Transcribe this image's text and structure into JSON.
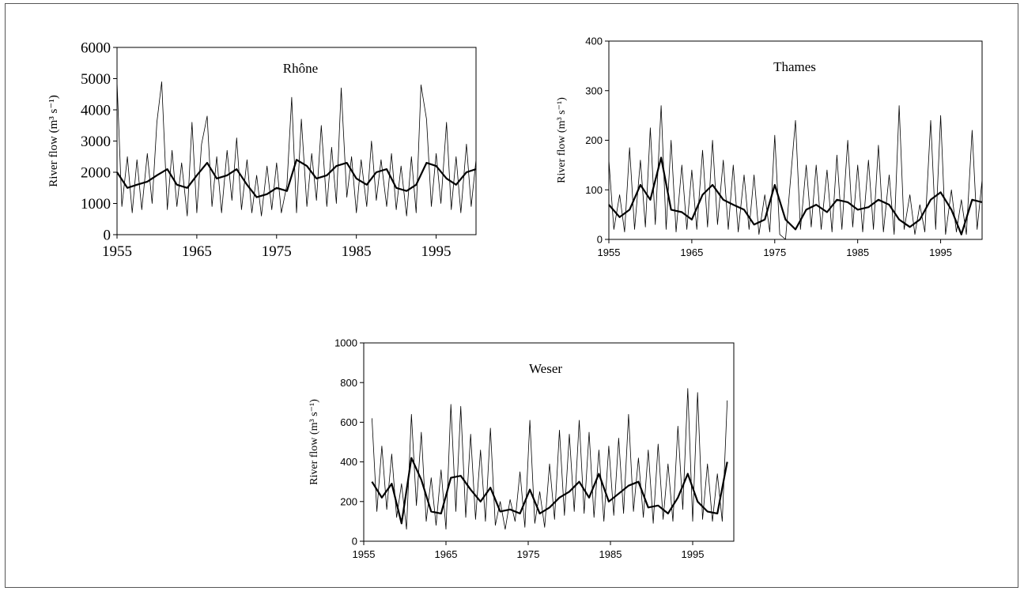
{
  "chart_data": [
    {
      "type": "line",
      "title": "Rhône",
      "ylabel": "River flow (m³ s⁻¹)",
      "xlim": [
        1955,
        2000
      ],
      "ylim": [
        0,
        6000
      ],
      "x_ticks": [
        1955,
        1965,
        1975,
        1985,
        1995
      ],
      "y_ticks": [
        0,
        1000,
        2000,
        3000,
        4000,
        5000,
        6000
      ],
      "grid": false,
      "legend": "none",
      "series": [
        {
          "style": "thin",
          "x": [
            1955.0,
            1955.6,
            1956.3,
            1956.9,
            1957.5,
            1958.1,
            1958.8,
            1959.4,
            1960.0,
            1960.6,
            1961.3,
            1961.9,
            1962.5,
            1963.1,
            1963.8,
            1964.4,
            1965.0,
            1965.6,
            1966.3,
            1966.9,
            1967.5,
            1968.1,
            1968.8,
            1969.4,
            1970.0,
            1970.6,
            1971.3,
            1971.9,
            1972.5,
            1973.1,
            1973.8,
            1974.4,
            1975.0,
            1975.6,
            1976.3,
            1976.9,
            1977.5,
            1978.1,
            1978.8,
            1979.4,
            1980.0,
            1980.6,
            1981.3,
            1981.9,
            1982.5,
            1983.1,
            1983.8,
            1984.4,
            1985.0,
            1985.6,
            1986.3,
            1986.9,
            1987.5,
            1988.1,
            1988.8,
            1989.4,
            1990.0,
            1990.6,
            1991.3,
            1991.9,
            1992.5,
            1993.1,
            1993.8,
            1994.4,
            1995.0,
            1995.6,
            1996.3,
            1996.9,
            1997.5,
            1998.1,
            1998.8,
            1999.4,
            2000.0
          ],
          "y": [
            4900,
            900,
            2500,
            700,
            2400,
            800,
            2600,
            1000,
            3600,
            4900,
            800,
            2700,
            900,
            2300,
            600,
            3600,
            700,
            2900,
            3800,
            900,
            2500,
            700,
            2700,
            1100,
            3100,
            800,
            2400,
            700,
            1900,
            600,
            2200,
            800,
            2300,
            700,
            1600,
            4400,
            700,
            3700,
            900,
            2600,
            1100,
            3500,
            900,
            2800,
            1000,
            4700,
            1200,
            2500,
            700,
            2400,
            900,
            3000,
            1100,
            2400,
            900,
            2600,
            800,
            2200,
            600,
            2500,
            700,
            4800,
            3700,
            900,
            2600,
            1000,
            3600,
            800,
            2500,
            700,
            2900,
            900,
            2400
          ]
        },
        {
          "style": "thick",
          "x": [
            1955.0,
            1956.3,
            1957.5,
            1958.8,
            1960.0,
            1961.3,
            1962.5,
            1963.8,
            1965.0,
            1966.3,
            1967.5,
            1968.8,
            1970.0,
            1971.3,
            1972.5,
            1973.8,
            1975.0,
            1976.3,
            1977.5,
            1978.8,
            1980.0,
            1981.3,
            1982.5,
            1983.8,
            1985.0,
            1986.3,
            1987.5,
            1988.8,
            1990.0,
            1991.3,
            1992.5,
            1993.8,
            1995.0,
            1996.3,
            1997.5,
            1998.8,
            2000.0
          ],
          "y": [
            2000,
            1500,
            1600,
            1700,
            1900,
            2100,
            1600,
            1500,
            1900,
            2300,
            1800,
            1900,
            2100,
            1600,
            1200,
            1300,
            1500,
            1400,
            2400,
            2200,
            1800,
            1900,
            2200,
            2300,
            1800,
            1600,
            2000,
            2100,
            1500,
            1400,
            1600,
            2300,
            2200,
            1800,
            1600,
            2000,
            2100
          ]
        }
      ]
    },
    {
      "type": "line",
      "title": "Thames",
      "ylabel": "River flow (m³ s⁻¹)",
      "xlim": [
        1955,
        2000
      ],
      "ylim": [
        0,
        400
      ],
      "x_ticks": [
        1955,
        1965,
        1975,
        1985,
        1995
      ],
      "y_ticks": [
        0,
        100,
        200,
        300,
        400
      ],
      "grid": false,
      "legend": "none",
      "series": [
        {
          "style": "thin",
          "x": [
            1955.0,
            1955.6,
            1956.3,
            1956.9,
            1957.5,
            1958.1,
            1958.8,
            1959.4,
            1960.0,
            1960.6,
            1961.3,
            1961.9,
            1962.5,
            1963.1,
            1963.8,
            1964.4,
            1965.0,
            1965.6,
            1966.3,
            1966.9,
            1967.5,
            1968.1,
            1968.8,
            1969.4,
            1970.0,
            1970.6,
            1971.3,
            1971.9,
            1972.5,
            1973.1,
            1973.8,
            1974.4,
            1975.0,
            1975.6,
            1976.3,
            1976.9,
            1977.5,
            1978.1,
            1978.8,
            1979.4,
            1980.0,
            1980.6,
            1981.3,
            1981.9,
            1982.5,
            1983.1,
            1983.8,
            1984.4,
            1985.0,
            1985.6,
            1986.3,
            1986.9,
            1987.5,
            1988.1,
            1988.8,
            1989.4,
            1990.0,
            1990.6,
            1991.3,
            1991.9,
            1992.5,
            1993.1,
            1993.8,
            1994.4,
            1995.0,
            1995.6,
            1996.3,
            1996.9,
            1997.5,
            1998.1,
            1998.8,
            1999.4,
            2000.0
          ],
          "y": [
            160,
            20,
            90,
            15,
            185,
            20,
            160,
            25,
            225,
            30,
            270,
            20,
            200,
            15,
            150,
            20,
            140,
            20,
            180,
            25,
            200,
            30,
            160,
            20,
            150,
            15,
            130,
            20,
            130,
            10,
            90,
            15,
            210,
            10,
            0,
            120,
            240,
            20,
            150,
            25,
            150,
            20,
            140,
            15,
            170,
            20,
            200,
            25,
            150,
            15,
            160,
            20,
            190,
            15,
            130,
            10,
            270,
            20,
            90,
            10,
            70,
            15,
            240,
            20,
            250,
            10,
            100,
            15,
            80,
            10,
            220,
            20,
            120
          ]
        },
        {
          "style": "thick",
          "x": [
            1955.0,
            1956.3,
            1957.5,
            1958.8,
            1960.0,
            1961.3,
            1962.5,
            1963.8,
            1965.0,
            1966.3,
            1967.5,
            1968.8,
            1970.0,
            1971.3,
            1972.5,
            1973.8,
            1975.0,
            1976.3,
            1977.5,
            1978.8,
            1980.0,
            1981.3,
            1982.5,
            1983.8,
            1985.0,
            1986.3,
            1987.5,
            1988.8,
            1990.0,
            1991.3,
            1992.5,
            1993.8,
            1995.0,
            1996.3,
            1997.5,
            1998.8,
            2000.0
          ],
          "y": [
            70,
            45,
            60,
            110,
            80,
            165,
            60,
            55,
            40,
            90,
            110,
            80,
            70,
            60,
            30,
            40,
            110,
            40,
            20,
            60,
            70,
            55,
            80,
            75,
            60,
            65,
            80,
            70,
            40,
            25,
            40,
            80,
            95,
            60,
            10,
            80,
            75
          ]
        }
      ]
    },
    {
      "type": "line",
      "title": "Weser",
      "ylabel": "River flow (m³ s⁻¹)",
      "xlim": [
        1955,
        2000
      ],
      "ylim": [
        0,
        1000
      ],
      "x_ticks": [
        1955,
        1965,
        1975,
        1985,
        1995
      ],
      "y_ticks": [
        0,
        200,
        400,
        600,
        800,
        1000
      ],
      "grid": false,
      "legend": "none",
      "series": [
        {
          "style": "thin",
          "x": [
            1956.0,
            1956.6,
            1957.2,
            1957.8,
            1958.4,
            1959.0,
            1959.6,
            1960.2,
            1960.8,
            1961.4,
            1962.0,
            1962.6,
            1963.2,
            1963.8,
            1964.4,
            1965.0,
            1965.6,
            1966.2,
            1966.8,
            1967.4,
            1968.0,
            1968.6,
            1969.2,
            1969.8,
            1970.4,
            1971.0,
            1971.6,
            1972.2,
            1972.8,
            1973.4,
            1974.0,
            1974.6,
            1975.2,
            1975.8,
            1976.4,
            1977.0,
            1977.6,
            1978.2,
            1978.8,
            1979.4,
            1980.0,
            1980.6,
            1981.2,
            1981.8,
            1982.4,
            1983.0,
            1983.6,
            1984.2,
            1984.8,
            1985.4,
            1986.0,
            1986.6,
            1987.2,
            1987.8,
            1988.4,
            1989.0,
            1989.6,
            1990.2,
            1990.8,
            1991.4,
            1992.0,
            1992.6,
            1993.2,
            1993.8,
            1994.4,
            1995.0,
            1995.6,
            1996.2,
            1996.8,
            1997.4,
            1998.0,
            1998.6,
            1999.2
          ],
          "y": [
            620,
            150,
            480,
            160,
            440,
            120,
            290,
            60,
            640,
            180,
            550,
            100,
            320,
            80,
            360,
            60,
            690,
            150,
            680,
            120,
            540,
            110,
            460,
            100,
            570,
            80,
            200,
            60,
            210,
            100,
            350,
            70,
            610,
            90,
            250,
            70,
            390,
            110,
            560,
            130,
            540,
            150,
            610,
            140,
            550,
            120,
            460,
            100,
            480,
            130,
            520,
            140,
            640,
            150,
            420,
            120,
            460,
            90,
            490,
            110,
            390,
            100,
            580,
            160,
            770,
            100,
            750,
            110,
            390,
            100,
            340,
            100,
            710
          ]
        },
        {
          "style": "thick",
          "x": [
            1956.0,
            1957.2,
            1958.4,
            1959.6,
            1960.8,
            1962.0,
            1963.2,
            1964.4,
            1965.6,
            1966.8,
            1968.0,
            1969.2,
            1970.4,
            1971.6,
            1972.8,
            1974.0,
            1975.2,
            1976.4,
            1977.6,
            1978.8,
            1980.0,
            1981.2,
            1982.4,
            1983.6,
            1984.8,
            1986.0,
            1987.2,
            1988.4,
            1989.6,
            1990.8,
            1992.0,
            1993.2,
            1994.4,
            1995.6,
            1996.8,
            1998.0,
            1999.2
          ],
          "y": [
            300,
            220,
            290,
            90,
            420,
            310,
            150,
            140,
            320,
            330,
            260,
            200,
            270,
            150,
            160,
            140,
            260,
            140,
            170,
            220,
            250,
            300,
            220,
            340,
            200,
            240,
            280,
            300,
            170,
            180,
            140,
            220,
            340,
            200,
            150,
            140,
            400
          ]
        }
      ]
    }
  ]
}
